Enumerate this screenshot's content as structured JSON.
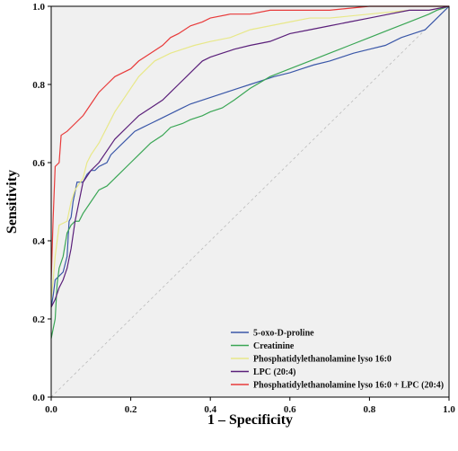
{
  "chart_data": {
    "type": "line",
    "title": "",
    "xlabel": "1 – Specificity",
    "ylabel": "Sensitivity",
    "xlim": [
      0,
      1
    ],
    "ylim": [
      0,
      1
    ],
    "x_ticks": [
      "0.0",
      "0.2",
      "0.4",
      "0.6",
      "0.8",
      "1.0"
    ],
    "y_ticks": [
      "0.0",
      "0.2",
      "0.4",
      "0.6",
      "0.8",
      "1.0"
    ],
    "grid": false,
    "legend_position": "bottom-right",
    "reference_line": true,
    "colors": {
      "background": "#f0f0f0",
      "reference": "#bbbbbb"
    },
    "series": [
      {
        "name": "5-oxo-D-proline",
        "color": "#3a57a8",
        "points": [
          [
            0,
            0.23
          ],
          [
            0.005,
            0.26
          ],
          [
            0.01,
            0.3
          ],
          [
            0.02,
            0.31
          ],
          [
            0.03,
            0.32
          ],
          [
            0.04,
            0.36
          ],
          [
            0.045,
            0.45
          ],
          [
            0.05,
            0.46
          ],
          [
            0.055,
            0.5
          ],
          [
            0.065,
            0.55
          ],
          [
            0.08,
            0.55
          ],
          [
            0.09,
            0.57
          ],
          [
            0.1,
            0.58
          ],
          [
            0.11,
            0.58
          ],
          [
            0.12,
            0.59
          ],
          [
            0.14,
            0.6
          ],
          [
            0.15,
            0.62
          ],
          [
            0.17,
            0.64
          ],
          [
            0.19,
            0.66
          ],
          [
            0.21,
            0.68
          ],
          [
            0.23,
            0.69
          ],
          [
            0.25,
            0.7
          ],
          [
            0.27,
            0.71
          ],
          [
            0.29,
            0.72
          ],
          [
            0.31,
            0.73
          ],
          [
            0.33,
            0.74
          ],
          [
            0.35,
            0.75
          ],
          [
            0.38,
            0.76
          ],
          [
            0.41,
            0.77
          ],
          [
            0.44,
            0.78
          ],
          [
            0.47,
            0.79
          ],
          [
            0.5,
            0.8
          ],
          [
            0.53,
            0.81
          ],
          [
            0.56,
            0.82
          ],
          [
            0.6,
            0.83
          ],
          [
            0.63,
            0.84
          ],
          [
            0.66,
            0.85
          ],
          [
            0.7,
            0.86
          ],
          [
            0.73,
            0.87
          ],
          [
            0.76,
            0.88
          ],
          [
            0.8,
            0.89
          ],
          [
            0.84,
            0.9
          ],
          [
            0.88,
            0.92
          ],
          [
            0.91,
            0.93
          ],
          [
            0.94,
            0.94
          ],
          [
            0.96,
            0.96
          ],
          [
            0.98,
            0.98
          ],
          [
            1,
            1
          ]
        ]
      },
      {
        "name": "Creatinine",
        "color": "#3aa655",
        "points": [
          [
            0,
            0.15
          ],
          [
            0.01,
            0.2
          ],
          [
            0.015,
            0.29
          ],
          [
            0.02,
            0.33
          ],
          [
            0.03,
            0.36
          ],
          [
            0.04,
            0.42
          ],
          [
            0.05,
            0.44
          ],
          [
            0.06,
            0.45
          ],
          [
            0.07,
            0.45
          ],
          [
            0.08,
            0.47
          ],
          [
            0.1,
            0.5
          ],
          [
            0.12,
            0.53
          ],
          [
            0.14,
            0.54
          ],
          [
            0.17,
            0.57
          ],
          [
            0.2,
            0.6
          ],
          [
            0.22,
            0.62
          ],
          [
            0.25,
            0.65
          ],
          [
            0.28,
            0.67
          ],
          [
            0.3,
            0.69
          ],
          [
            0.33,
            0.7
          ],
          [
            0.35,
            0.71
          ],
          [
            0.38,
            0.72
          ],
          [
            0.4,
            0.73
          ],
          [
            0.43,
            0.74
          ],
          [
            0.46,
            0.76
          ],
          [
            0.5,
            0.79
          ],
          [
            0.55,
            0.82
          ],
          [
            0.6,
            0.84
          ],
          [
            0.65,
            0.86
          ],
          [
            0.7,
            0.88
          ],
          [
            0.75,
            0.9
          ],
          [
            0.8,
            0.92
          ],
          [
            0.85,
            0.94
          ],
          [
            0.9,
            0.96
          ],
          [
            0.95,
            0.98
          ],
          [
            0.97,
            0.99
          ],
          [
            1,
            1
          ]
        ]
      },
      {
        "name": "Phosphatidylethanolamine lyso 16:0",
        "color": "#e8e889",
        "points": [
          [
            0,
            0.25
          ],
          [
            0.005,
            0.3
          ],
          [
            0.01,
            0.36
          ],
          [
            0.02,
            0.44
          ],
          [
            0.04,
            0.45
          ],
          [
            0.05,
            0.5
          ],
          [
            0.06,
            0.53
          ],
          [
            0.08,
            0.56
          ],
          [
            0.09,
            0.6
          ],
          [
            0.1,
            0.62
          ],
          [
            0.12,
            0.65
          ],
          [
            0.14,
            0.69
          ],
          [
            0.16,
            0.73
          ],
          [
            0.18,
            0.76
          ],
          [
            0.2,
            0.79
          ],
          [
            0.22,
            0.82
          ],
          [
            0.24,
            0.84
          ],
          [
            0.26,
            0.86
          ],
          [
            0.28,
            0.87
          ],
          [
            0.3,
            0.88
          ],
          [
            0.33,
            0.89
          ],
          [
            0.36,
            0.9
          ],
          [
            0.4,
            0.91
          ],
          [
            0.45,
            0.92
          ],
          [
            0.5,
            0.94
          ],
          [
            0.55,
            0.95
          ],
          [
            0.6,
            0.96
          ],
          [
            0.65,
            0.97
          ],
          [
            0.7,
            0.97
          ],
          [
            0.8,
            0.98
          ],
          [
            0.9,
            0.99
          ],
          [
            0.95,
            0.99
          ],
          [
            1,
            1
          ]
        ]
      },
      {
        "name": "LPC (20:4)",
        "color": "#5a1f7a",
        "points": [
          [
            0,
            0.23
          ],
          [
            0.01,
            0.25
          ],
          [
            0.02,
            0.28
          ],
          [
            0.03,
            0.3
          ],
          [
            0.04,
            0.33
          ],
          [
            0.05,
            0.38
          ],
          [
            0.06,
            0.45
          ],
          [
            0.07,
            0.5
          ],
          [
            0.08,
            0.55
          ],
          [
            0.1,
            0.58
          ],
          [
            0.12,
            0.6
          ],
          [
            0.14,
            0.63
          ],
          [
            0.16,
            0.66
          ],
          [
            0.18,
            0.68
          ],
          [
            0.2,
            0.7
          ],
          [
            0.22,
            0.72
          ],
          [
            0.25,
            0.74
          ],
          [
            0.28,
            0.76
          ],
          [
            0.3,
            0.78
          ],
          [
            0.32,
            0.8
          ],
          [
            0.34,
            0.82
          ],
          [
            0.36,
            0.84
          ],
          [
            0.38,
            0.86
          ],
          [
            0.4,
            0.87
          ],
          [
            0.43,
            0.88
          ],
          [
            0.46,
            0.89
          ],
          [
            0.5,
            0.9
          ],
          [
            0.55,
            0.91
          ],
          [
            0.6,
            0.93
          ],
          [
            0.65,
            0.94
          ],
          [
            0.7,
            0.95
          ],
          [
            0.75,
            0.96
          ],
          [
            0.8,
            0.97
          ],
          [
            0.85,
            0.98
          ],
          [
            0.9,
            0.99
          ],
          [
            0.95,
            0.99
          ],
          [
            1,
            1
          ]
        ]
      },
      {
        "name": "Phosphatidylethanolamine lyso 16:0 + LPC (20:4)",
        "color": "#e83a3a",
        "points": [
          [
            0,
            0.3
          ],
          [
            0.005,
            0.46
          ],
          [
            0.01,
            0.59
          ],
          [
            0.02,
            0.6
          ],
          [
            0.025,
            0.67
          ],
          [
            0.04,
            0.68
          ],
          [
            0.06,
            0.7
          ],
          [
            0.08,
            0.72
          ],
          [
            0.1,
            0.75
          ],
          [
            0.12,
            0.78
          ],
          [
            0.14,
            0.8
          ],
          [
            0.16,
            0.82
          ],
          [
            0.18,
            0.83
          ],
          [
            0.2,
            0.84
          ],
          [
            0.22,
            0.86
          ],
          [
            0.25,
            0.88
          ],
          [
            0.28,
            0.9
          ],
          [
            0.3,
            0.92
          ],
          [
            0.32,
            0.93
          ],
          [
            0.35,
            0.95
          ],
          [
            0.38,
            0.96
          ],
          [
            0.4,
            0.97
          ],
          [
            0.45,
            0.98
          ],
          [
            0.5,
            0.98
          ],
          [
            0.55,
            0.99
          ],
          [
            0.6,
            0.99
          ],
          [
            0.7,
            0.99
          ],
          [
            0.8,
            1
          ],
          [
            0.9,
            1
          ],
          [
            1,
            1
          ]
        ]
      }
    ]
  }
}
